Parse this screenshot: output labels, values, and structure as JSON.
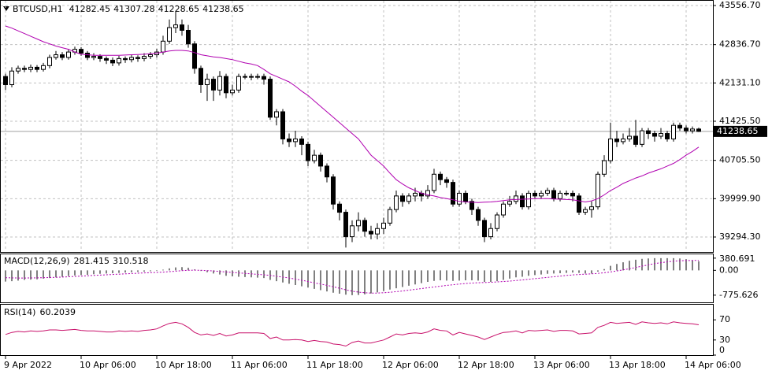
{
  "chart_data": [
    {
      "type": "candlestick",
      "symbol": "BTCUSD,H1",
      "open": [
        42250,
        42100,
        42350,
        42400,
        42380,
        42420,
        42380,
        42450,
        42600,
        42650,
        42600,
        42700,
        42750,
        42680,
        42600,
        42620,
        42580,
        42550,
        42500,
        42580,
        42560,
        42600,
        42580,
        42620,
        42650,
        42700,
        42900,
        43150,
        43200,
        43100,
        42850,
        42400,
        42100,
        42200,
        42000,
        42250,
        41950,
        42000,
        42250,
        42250,
        42250,
        42250,
        42200,
        41500,
        41600,
        41100,
        41050,
        41100,
        41000,
        40700,
        40800,
        40600,
        40400,
        39900,
        39750,
        39300,
        39500,
        39600,
        39400,
        39350,
        39450,
        39550,
        39800,
        40050,
        39950,
        40050,
        40100,
        40050,
        40150,
        40450,
        40350,
        40300,
        39900,
        40100,
        39950,
        39800,
        39600,
        39300,
        39450,
        39700,
        39900,
        39950,
        40050,
        39850,
        40100,
        40050,
        40100,
        40150,
        40000,
        40100,
        40100,
        40050,
        39750,
        39800,
        39850,
        40450,
        40700,
        41100,
        41050,
        41100,
        41150,
        41000,
        41250,
        41200,
        41150,
        41200,
        41100,
        41350,
        41300,
        41250,
        41282.45
      ],
      "high": [
        42300,
        42420,
        42450,
        42450,
        42470,
        42460,
        42500,
        42650,
        42720,
        42700,
        42750,
        42800,
        42790,
        42720,
        42680,
        42660,
        42620,
        42600,
        42630,
        42620,
        42650,
        42640,
        42680,
        42700,
        42760,
        43000,
        43300,
        43450,
        43300,
        43200,
        42900,
        42450,
        42300,
        42250,
        42350,
        42300,
        42100,
        42300,
        42300,
        42300,
        42300,
        42300,
        42250,
        41650,
        41650,
        41200,
        41250,
        41150,
        41050,
        40900,
        40850,
        40650,
        40450,
        39950,
        39800,
        39600,
        39750,
        39650,
        39500,
        39550,
        39650,
        39850,
        40150,
        40100,
        40100,
        40200,
        40150,
        40250,
        40550,
        40500,
        40400,
        40350,
        40150,
        40150,
        40000,
        39850,
        39650,
        39550,
        39750,
        39950,
        40050,
        40150,
        40100,
        40150,
        40150,
        40150,
        40200,
        40200,
        40150,
        40150,
        40150,
        40100,
        39850,
        39950,
        40500,
        40800,
        41400,
        41250,
        41200,
        41300,
        41450,
        41300,
        41300,
        41250,
        41300,
        41250,
        41400,
        41400,
        41350,
        41330,
        41307.28
      ],
      "low": [
        42000,
        42050,
        42300,
        42330,
        42330,
        42330,
        42340,
        42400,
        42560,
        42550,
        42560,
        42650,
        42630,
        42550,
        42550,
        42520,
        42480,
        42440,
        42450,
        42500,
        42510,
        42520,
        42530,
        42570,
        42600,
        42650,
        42850,
        43050,
        43000,
        42780,
        42300,
        41950,
        41800,
        41800,
        41900,
        41850,
        41900,
        41950,
        42200,
        42180,
        42200,
        42100,
        41450,
        41350,
        41000,
        40950,
        40950,
        40800,
        40600,
        40650,
        40500,
        40300,
        39800,
        39600,
        39100,
        39200,
        39400,
        39300,
        39250,
        39250,
        39350,
        39500,
        39750,
        39850,
        39900,
        39950,
        39950,
        40000,
        40100,
        40250,
        40200,
        39850,
        39850,
        39900,
        39700,
        39500,
        39200,
        39250,
        39400,
        39650,
        39850,
        39900,
        39800,
        39800,
        40000,
        40000,
        40050,
        39950,
        39950,
        40050,
        39950,
        39700,
        39700,
        39650,
        39800,
        40400,
        40650,
        40950,
        41000,
        41050,
        40950,
        40950,
        41100,
        41050,
        41100,
        41050,
        41050,
        41250,
        41200,
        41200,
        41228.65
      ],
      "close": [
        42100,
        42350,
        42400,
        42380,
        42420,
        42380,
        42450,
        42600,
        42650,
        42600,
        42700,
        42750,
        42680,
        42600,
        42620,
        42580,
        42550,
        42500,
        42580,
        42560,
        42600,
        42580,
        42620,
        42650,
        42700,
        42900,
        43150,
        43200,
        43100,
        42850,
        42400,
        42100,
        42200,
        42000,
        42250,
        41950,
        42000,
        42250,
        42250,
        42250,
        42250,
        42200,
        41500,
        41600,
        41100,
        41050,
        41100,
        41000,
        40700,
        40800,
        40600,
        40400,
        39900,
        39750,
        39300,
        39500,
        39600,
        39400,
        39350,
        39450,
        39550,
        39800,
        40050,
        39950,
        40050,
        40100,
        40050,
        40150,
        40450,
        40350,
        40300,
        39900,
        40100,
        39950,
        39800,
        39600,
        39300,
        39450,
        39700,
        39900,
        39950,
        40050,
        39850,
        40100,
        40050,
        40100,
        40150,
        40000,
        40100,
        40100,
        40050,
        39750,
        39800,
        39850,
        40450,
        40700,
        41100,
        41050,
        41100,
        41150,
        41000,
        41250,
        41200,
        41150,
        41200,
        41100,
        41350,
        41300,
        41250,
        41282.45,
        41238.65
      ],
      "up_color": "#ffffff",
      "down_color": "#000000",
      "overlay": {
        "color": "#b000b0",
        "values": [
          43180,
          43140,
          43090,
          43040,
          42990,
          42940,
          42890,
          42850,
          42810,
          42780,
          42750,
          42700,
          42660,
          42650,
          42640,
          42640,
          42640,
          42640,
          42640,
          42645,
          42650,
          42655,
          42660,
          42670,
          42680,
          42700,
          42720,
          42730,
          42730,
          42720,
          42690,
          42650,
          42630,
          42610,
          42600,
          42580,
          42560,
          42530,
          42500,
          42480,
          42450,
          42380,
          42300,
          42250,
          42200,
          42150,
          42070,
          41980,
          41900,
          41800,
          41700,
          41600,
          41500,
          41400,
          41300,
          41200,
          41100,
          40950,
          40800,
          40700,
          40600,
          40470,
          40350,
          40270,
          40200,
          40150,
          40100,
          40070,
          40050,
          40020,
          40000,
          39980,
          39950,
          39940,
          39935,
          39930,
          39935,
          39940,
          39950,
          39965,
          39980,
          39985,
          39990,
          39995,
          40000,
          40000,
          40000,
          39995,
          39990,
          39985,
          39980,
          39960,
          39940,
          39960,
          40000,
          40070,
          40150,
          40210,
          40280,
          40330,
          40380,
          40420,
          40470,
          40510,
          40550,
          40600,
          40650,
          40720,
          40800,
          40870,
          40950
        ]
      },
      "xlim": [
        -0.875,
        112.25
      ],
      "xticks": [
        {
          "value": 0,
          "label": "9 Apr 2022"
        },
        {
          "value": 12,
          "label": "10 Apr 06:00"
        },
        {
          "value": 24,
          "label": "10 Apr 18:00"
        },
        {
          "value": 36,
          "label": "11 Apr 06:00"
        },
        {
          "value": 48,
          "label": "11 Apr 18:00"
        },
        {
          "value": 60,
          "label": "12 Apr 06:00"
        },
        {
          "value": 72,
          "label": "12 Apr 18:00"
        },
        {
          "value": 84,
          "label": "13 Apr 06:00"
        },
        {
          "value": 96,
          "label": "13 Apr 18:00"
        },
        {
          "value": 108,
          "label": "14 Apr 06:00"
        }
      ],
      "ylim": [
        39033.3,
        43643.7
      ],
      "yticks": [
        {
          "value": 43556.7,
          "label": "43556.70"
        },
        {
          "value": 42836.7,
          "label": "42836.70"
        },
        {
          "value": 42131.1,
          "label": "42131.10"
        },
        {
          "value": 41425.5,
          "label": "41425.50"
        },
        {
          "value": 40705.5,
          "label": "40705.50"
        },
        {
          "value": 39999.9,
          "label": "39999.90"
        },
        {
          "value": 39294.3,
          "label": "39294.30"
        }
      ],
      "grid": true
    },
    {
      "type": "macd",
      "title": "MACD(12,26,9)",
      "series": [
        {
          "color": "#000000",
          "style": "histogram",
          "values": [
            -350,
            -340,
            -320,
            -300,
            -290,
            -280,
            -260,
            -240,
            -220,
            -200,
            -180,
            -160,
            -150,
            -140,
            -120,
            -110,
            -100,
            -90,
            -80,
            -70,
            -60,
            -50,
            -40,
            -30,
            -20,
            20,
            60,
            90,
            100,
            80,
            30,
            -20,
            -60,
            -100,
            -130,
            -170,
            -190,
            -200,
            -210,
            -220,
            -230,
            -240,
            -300,
            -340,
            -380,
            -420,
            -460,
            -500,
            -540,
            -580,
            -620,
            -660,
            -700,
            -730,
            -760,
            -775.626,
            -770,
            -750,
            -720,
            -690,
            -650,
            -600,
            -560,
            -520,
            -480,
            -440,
            -400,
            -360,
            -330,
            -310,
            -320,
            -330,
            -320,
            -310,
            -310,
            -320,
            -360,
            -360,
            -340,
            -300,
            -260,
            -220,
            -200,
            -170,
            -150,
            -130,
            -110,
            -100,
            -90,
            -80,
            -70,
            -80,
            -100,
            -100,
            -40,
            40,
            140,
            200,
            250,
            300,
            330,
            360,
            370,
            380.691,
            380,
            380,
            380,
            370,
            350,
            320,
            281.415
          ]
        },
        {
          "color": "#b000b0",
          "style": "dotted",
          "values": [
            -230,
            -235,
            -240,
            -240,
            -238,
            -235,
            -230,
            -225,
            -218,
            -210,
            -200,
            -190,
            -180,
            -170,
            -160,
            -150,
            -140,
            -130,
            -120,
            -110,
            -100,
            -90,
            -80,
            -72,
            -65,
            -55,
            -40,
            -25,
            -10,
            0,
            5,
            0,
            -10,
            -20,
            -35,
            -50,
            -65,
            -80,
            -95,
            -110,
            -125,
            -140,
            -160,
            -185,
            -210,
            -240,
            -275,
            -310,
            -350,
            -390,
            -430,
            -470,
            -510,
            -560,
            -610,
            -650,
            -680,
            -700,
            -710,
            -710,
            -700,
            -685,
            -665,
            -645,
            -620,
            -595,
            -570,
            -545,
            -520,
            -495,
            -472,
            -450,
            -430,
            -413,
            -398,
            -388,
            -380,
            -372,
            -362,
            -350,
            -335,
            -320,
            -300,
            -280,
            -260,
            -240,
            -220,
            -200,
            -180,
            -160,
            -145,
            -130,
            -120,
            -110,
            -95,
            -75,
            -50,
            -20,
            15,
            50,
            90,
            130,
            170,
            210,
            240,
            265,
            285,
            298,
            305,
            309,
            310.518
          ]
        }
      ],
      "ylim": [
        -1000,
        500
      ],
      "yticks": [
        380.691,
        {
          "value": 0,
          "label": "0.00"
        },
        -775.626
      ]
    },
    {
      "type": "rsi",
      "title": "RSI(14)",
      "color": "#c8106a",
      "values": [
        41,
        45,
        47,
        46,
        48,
        47,
        48,
        50,
        50,
        49,
        50,
        51,
        49,
        48,
        48,
        47,
        46,
        46,
        48,
        47,
        48,
        47,
        49,
        50,
        52,
        58,
        63,
        65,
        62,
        55,
        45,
        40,
        42,
        39,
        43,
        38,
        40,
        44,
        44,
        44,
        44,
        43,
        33,
        36,
        30,
        30,
        31,
        30,
        27,
        29,
        27,
        26,
        22,
        21,
        18,
        25,
        28,
        24,
        24,
        27,
        30,
        36,
        42,
        40,
        43,
        44,
        43,
        46,
        52,
        49,
        48,
        40,
        45,
        42,
        39,
        36,
        31,
        36,
        41,
        45,
        46,
        48,
        44,
        49,
        48,
        49,
        50,
        47,
        49,
        49,
        48,
        42,
        43,
        44,
        55,
        59,
        65,
        63,
        64,
        65,
        61,
        66,
        64,
        63,
        64,
        62,
        66,
        64,
        63,
        62,
        60.2039
      ],
      "ylim": [
        0,
        100
      ],
      "yticks": [
        70,
        30,
        0
      ]
    }
  ]
}
